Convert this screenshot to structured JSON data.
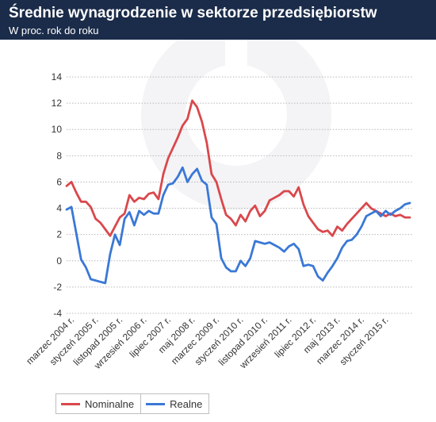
{
  "header": {
    "title": "Średnie wynagrodzenie w sektorze przedsiębiorstw",
    "subtitle": "W proc. rok do roku"
  },
  "colors": {
    "header_bg": "#1b2c4a",
    "nominal": "#d9484c",
    "real": "#3a78d6"
  },
  "chart_data": {
    "type": "line",
    "title": "Średnie wynagrodzenie w sektorze przedsiębiorstw",
    "subtitle": "W proc. rok do roku",
    "ylim": [
      -4,
      14
    ],
    "yticks": [
      -4,
      -2,
      0,
      2,
      4,
      6,
      8,
      10,
      12,
      14
    ],
    "grid": "horizontal, dotted",
    "legend_position": "bottom-left",
    "x_start": "2004-01",
    "x_end": "2015-12",
    "x_tick_labels": [
      {
        "label": "marzec 2004 r.",
        "x": "2004-03"
      },
      {
        "label": "styczeń 2005 r.",
        "x": "2005-01"
      },
      {
        "label": "listopad 2005 r.",
        "x": "2005-11"
      },
      {
        "label": "wrzesień 2006 r.",
        "x": "2006-09"
      },
      {
        "label": "lipiec 2007 r.",
        "x": "2007-07"
      },
      {
        "label": "maj 2008 r.",
        "x": "2008-05"
      },
      {
        "label": "marzec 2009 r.",
        "x": "2009-03"
      },
      {
        "label": "styczeń 2010 r.",
        "x": "2010-01"
      },
      {
        "label": "listopad 2010 r.",
        "x": "2010-11"
      },
      {
        "label": "wrzesień 2011 r.",
        "x": "2011-09"
      },
      {
        "label": "lipiec 2012 r.",
        "x": "2012-07"
      },
      {
        "label": "maj 2013 r.",
        "x": "2013-05"
      },
      {
        "label": "marzec 2014 r.",
        "x": "2014-03"
      },
      {
        "label": "styczeń 2015 r.",
        "x": "2015-01"
      }
    ],
    "series": [
      {
        "name": "Nominalne",
        "color": "#d9484c",
        "points": [
          [
            "2004-01",
            5.7
          ],
          [
            "2004-03",
            6.0
          ],
          [
            "2004-05",
            5.2
          ],
          [
            "2004-07",
            4.5
          ],
          [
            "2004-09",
            4.5
          ],
          [
            "2004-11",
            4.1
          ],
          [
            "2005-01",
            3.2
          ],
          [
            "2005-03",
            2.9
          ],
          [
            "2005-05",
            2.4
          ],
          [
            "2005-07",
            1.9
          ],
          [
            "2005-09",
            2.6
          ],
          [
            "2005-11",
            3.3
          ],
          [
            "2006-01",
            3.6
          ],
          [
            "2006-03",
            5.0
          ],
          [
            "2006-05",
            4.5
          ],
          [
            "2006-07",
            4.8
          ],
          [
            "2006-09",
            4.7
          ],
          [
            "2006-11",
            5.1
          ],
          [
            "2007-01",
            5.2
          ],
          [
            "2007-03",
            4.7
          ],
          [
            "2007-05",
            6.6
          ],
          [
            "2007-07",
            7.8
          ],
          [
            "2007-09",
            8.6
          ],
          [
            "2007-11",
            9.4
          ],
          [
            "2008-01",
            10.3
          ],
          [
            "2008-03",
            10.8
          ],
          [
            "2008-05",
            12.2
          ],
          [
            "2008-07",
            11.7
          ],
          [
            "2008-09",
            10.6
          ],
          [
            "2008-11",
            9.0
          ],
          [
            "2009-01",
            6.6
          ],
          [
            "2009-03",
            6.0
          ],
          [
            "2009-05",
            4.7
          ],
          [
            "2009-07",
            3.5
          ],
          [
            "2009-09",
            3.2
          ],
          [
            "2009-11",
            2.7
          ],
          [
            "2010-01",
            3.5
          ],
          [
            "2010-03",
            3.0
          ],
          [
            "2010-05",
            3.8
          ],
          [
            "2010-07",
            4.2
          ],
          [
            "2010-09",
            3.4
          ],
          [
            "2010-11",
            3.8
          ],
          [
            "2011-01",
            4.6
          ],
          [
            "2011-03",
            4.8
          ],
          [
            "2011-05",
            5.0
          ],
          [
            "2011-07",
            5.3
          ],
          [
            "2011-09",
            5.3
          ],
          [
            "2011-11",
            4.9
          ],
          [
            "2012-01",
            5.6
          ],
          [
            "2012-03",
            4.3
          ],
          [
            "2012-05",
            3.4
          ],
          [
            "2012-07",
            2.9
          ],
          [
            "2012-09",
            2.4
          ],
          [
            "2012-11",
            2.2
          ],
          [
            "2013-01",
            2.3
          ],
          [
            "2013-03",
            1.9
          ],
          [
            "2013-05",
            2.6
          ],
          [
            "2013-07",
            2.3
          ],
          [
            "2013-09",
            2.8
          ],
          [
            "2013-11",
            3.2
          ],
          [
            "2014-01",
            3.6
          ],
          [
            "2014-03",
            4.0
          ],
          [
            "2014-05",
            4.4
          ],
          [
            "2014-07",
            4.0
          ],
          [
            "2014-09",
            3.8
          ],
          [
            "2014-11",
            3.6
          ],
          [
            "2015-01",
            3.4
          ],
          [
            "2015-03",
            3.6
          ],
          [
            "2015-05",
            3.4
          ],
          [
            "2015-07",
            3.5
          ],
          [
            "2015-09",
            3.3
          ],
          [
            "2015-11",
            3.3
          ]
        ]
      },
      {
        "name": "Realne",
        "color": "#3a78d6",
        "points": [
          [
            "2004-01",
            3.9
          ],
          [
            "2004-03",
            4.1
          ],
          [
            "2004-05",
            2.1
          ],
          [
            "2004-07",
            0.1
          ],
          [
            "2004-09",
            -0.5
          ],
          [
            "2004-11",
            -1.4
          ],
          [
            "2005-01",
            -1.5
          ],
          [
            "2005-03",
            -1.6
          ],
          [
            "2005-05",
            -1.7
          ],
          [
            "2005-07",
            0.5
          ],
          [
            "2005-09",
            2.0
          ],
          [
            "2005-11",
            1.2
          ],
          [
            "2006-01",
            3.2
          ],
          [
            "2006-03",
            3.7
          ],
          [
            "2006-05",
            2.7
          ],
          [
            "2006-07",
            3.8
          ],
          [
            "2006-09",
            3.5
          ],
          [
            "2006-11",
            3.8
          ],
          [
            "2007-01",
            3.6
          ],
          [
            "2007-03",
            3.6
          ],
          [
            "2007-05",
            5.0
          ],
          [
            "2007-07",
            5.8
          ],
          [
            "2007-09",
            5.9
          ],
          [
            "2007-11",
            6.4
          ],
          [
            "2008-01",
            7.1
          ],
          [
            "2008-03",
            6.0
          ],
          [
            "2008-05",
            6.6
          ],
          [
            "2008-07",
            7.0
          ],
          [
            "2008-09",
            6.1
          ],
          [
            "2008-11",
            5.8
          ],
          [
            "2009-01",
            3.3
          ],
          [
            "2009-03",
            2.8
          ],
          [
            "2009-05",
            0.2
          ],
          [
            "2009-07",
            -0.5
          ],
          [
            "2009-09",
            -0.8
          ],
          [
            "2009-11",
            -0.8
          ],
          [
            "2010-01",
            0.0
          ],
          [
            "2010-03",
            -0.4
          ],
          [
            "2010-05",
            0.2
          ],
          [
            "2010-07",
            1.5
          ],
          [
            "2010-09",
            1.4
          ],
          [
            "2010-11",
            1.3
          ],
          [
            "2011-01",
            1.4
          ],
          [
            "2011-03",
            1.2
          ],
          [
            "2011-05",
            1.0
          ],
          [
            "2011-07",
            0.7
          ],
          [
            "2011-09",
            1.1
          ],
          [
            "2011-11",
            1.3
          ],
          [
            "2012-01",
            0.9
          ],
          [
            "2012-03",
            -0.4
          ],
          [
            "2012-05",
            -0.3
          ],
          [
            "2012-07",
            -0.4
          ],
          [
            "2012-09",
            -1.2
          ],
          [
            "2012-11",
            -1.5
          ],
          [
            "2013-01",
            -0.9
          ],
          [
            "2013-03",
            -0.4
          ],
          [
            "2013-05",
            0.2
          ],
          [
            "2013-07",
            1.0
          ],
          [
            "2013-09",
            1.5
          ],
          [
            "2013-11",
            1.6
          ],
          [
            "2014-01",
            2.0
          ],
          [
            "2014-03",
            2.6
          ],
          [
            "2014-05",
            3.4
          ],
          [
            "2014-07",
            3.6
          ],
          [
            "2014-09",
            3.8
          ],
          [
            "2014-11",
            3.4
          ],
          [
            "2015-01",
            3.8
          ],
          [
            "2015-03",
            3.5
          ],
          [
            "2015-05",
            3.8
          ],
          [
            "2015-07",
            4.0
          ],
          [
            "2015-09",
            4.3
          ],
          [
            "2015-11",
            4.4
          ]
        ]
      }
    ]
  }
}
